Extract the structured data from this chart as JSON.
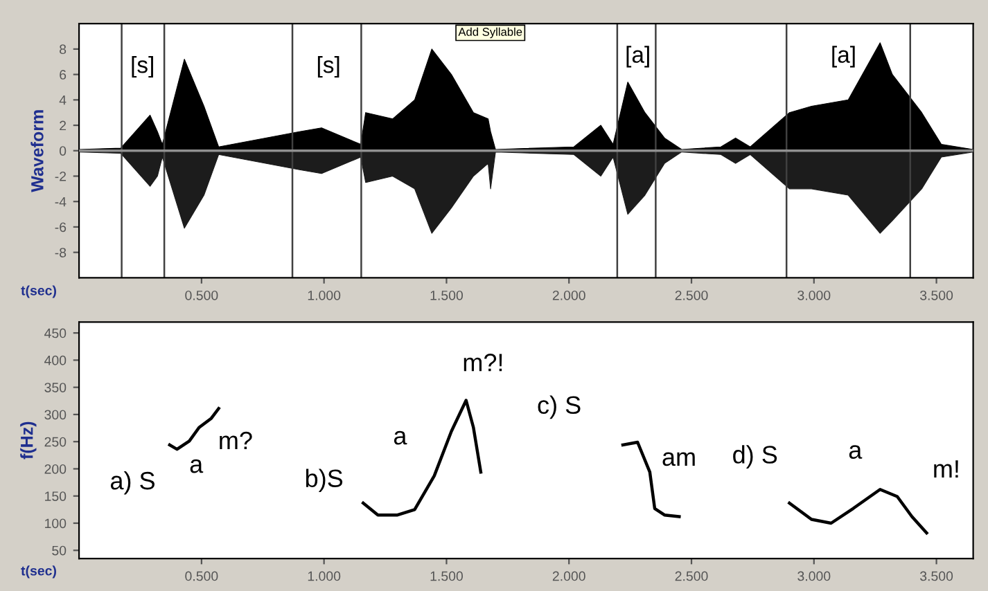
{
  "chart_data": [
    {
      "type": "area",
      "ylabel": "Waveform",
      "xlabel": "t(sec)",
      "xlim": [
        0,
        3.65
      ],
      "ylim": [
        -10,
        10
      ],
      "xticks": [
        {
          "value": 0.5,
          "label": "0.500"
        },
        {
          "value": 1.0,
          "label": "1.000"
        },
        {
          "value": 1.5,
          "label": "1.500"
        },
        {
          "value": 2.0,
          "label": "2.000"
        },
        {
          "value": 2.5,
          "label": "2.500"
        },
        {
          "value": 3.0,
          "label": "3.000"
        },
        {
          "value": 3.5,
          "label": "3.500"
        }
      ],
      "yticks": [
        -8,
        -6,
        -4,
        -2,
        0,
        2,
        4,
        6,
        8
      ],
      "series": [
        {
          "color": "#000000",
          "x": [
            0,
            0.17,
            0.29,
            0.32,
            0.34,
            0.43,
            0.51,
            0.57,
            0.9,
            0.99,
            1.15,
            1.17,
            1.28,
            1.37,
            1.44,
            1.52,
            1.61,
            1.67,
            1.68,
            1.7,
            2.02,
            2.13,
            2.18,
            2.24,
            2.31,
            2.39,
            2.46,
            2.62,
            2.68,
            2.74,
            2.9,
            2.99,
            3.14,
            3.27,
            3.32,
            3.44,
            3.52,
            3.65
          ],
          "values": [
            0.1,
            0.2,
            2.8,
            1.5,
            0.5,
            7.2,
            3.5,
            0.3,
            1.5,
            1.8,
            0.5,
            3,
            2.5,
            4,
            8,
            6,
            3,
            2.5,
            1.5,
            0.1,
            0.3,
            2,
            0.5,
            5.4,
            3,
            1,
            0.1,
            0.3,
            1,
            0.3,
            3,
            3.5,
            4,
            8.5,
            6,
            3,
            0.5,
            0.1
          ]
        },
        {
          "color": "#1c1c1c",
          "x": [
            0,
            0.17,
            0.29,
            0.32,
            0.34,
            0.43,
            0.51,
            0.57,
            0.9,
            0.99,
            1.15,
            1.17,
            1.28,
            1.37,
            1.44,
            1.52,
            1.61,
            1.67,
            1.68,
            1.7,
            2.02,
            2.13,
            2.18,
            2.24,
            2.31,
            2.39,
            2.46,
            2.62,
            2.68,
            2.74,
            2.9,
            2.99,
            3.14,
            3.27,
            3.32,
            3.44,
            3.52,
            3.65
          ],
          "values": [
            -0.1,
            -0.2,
            -2.8,
            -2,
            -0.5,
            -6.1,
            -3.5,
            -0.3,
            -1.5,
            -1.8,
            -0.5,
            -2.5,
            -2,
            -3,
            -6.5,
            -4.5,
            -2,
            -1,
            -3,
            -0.1,
            -0.3,
            -2,
            -0.5,
            -5,
            -3.5,
            -1,
            -0.1,
            -0.3,
            -1,
            -0.3,
            -3,
            -3,
            -3.5,
            -6.5,
            -5.5,
            -3,
            -0.5,
            -0.1
          ]
        }
      ],
      "ref_lines": [
        {
          "axis": "x",
          "value": 0.174,
          "color": "#404040"
        },
        {
          "axis": "x",
          "value": 0.348,
          "color": "#404040"
        },
        {
          "axis": "x",
          "value": 0.871,
          "color": "#404040"
        },
        {
          "axis": "x",
          "value": 1.152,
          "color": "#404040"
        },
        {
          "axis": "x",
          "value": 2.197,
          "color": "#404040"
        },
        {
          "axis": "x",
          "value": 2.354,
          "color": "#404040"
        },
        {
          "axis": "x",
          "value": 2.888,
          "color": "#404040"
        },
        {
          "axis": "x",
          "value": 3.393,
          "color": "#404040"
        },
        {
          "axis": "y",
          "value": 0,
          "color": "#909090"
        }
      ],
      "annotations": [
        "[s]",
        "[s]",
        "[a]",
        "[a]",
        "Add Syllable"
      ]
    },
    {
      "type": "line",
      "ylabel": "f(Hz)",
      "xlabel": "t(sec)",
      "xlim": [
        0,
        3.65
      ],
      "ylim": [
        35,
        470
      ],
      "xticks": [
        {
          "value": 0.5,
          "label": "0.500"
        },
        {
          "value": 1.0,
          "label": "1.000"
        },
        {
          "value": 1.5,
          "label": "1.500"
        },
        {
          "value": 2.0,
          "label": "2.000"
        },
        {
          "value": 2.5,
          "label": "2.500"
        },
        {
          "value": 3.0,
          "label": "3.000"
        },
        {
          "value": 3.5,
          "label": "3.500"
        }
      ],
      "yticks": [
        50,
        100,
        150,
        200,
        250,
        300,
        350,
        400,
        450
      ],
      "marker": "none",
      "line_style": "solid",
      "series": [
        {
          "color": "#000000",
          "x": [
            0.37,
            0.4,
            0.45,
            0.49,
            0.54,
            0.57
          ],
          "values": [
            244,
            236,
            251,
            276,
            293,
            311
          ]
        },
        {
          "color": "#000000",
          "x": [
            1.16,
            1.22,
            1.3,
            1.37,
            1.45,
            1.52,
            1.58,
            1.61,
            1.64
          ],
          "values": [
            137,
            115,
            115,
            125,
            187,
            269,
            326,
            276,
            194
          ]
        },
        {
          "color": "#000000",
          "x": [
            2.22,
            2.28,
            2.33,
            2.35,
            2.39,
            2.45
          ],
          "values": [
            244,
            249,
            194,
            127,
            115,
            112
          ]
        },
        {
          "color": "#000000",
          "x": [
            2.9,
            2.99,
            3.07,
            3.16,
            3.27,
            3.34,
            3.4,
            3.46
          ],
          "values": [
            137,
            107,
            100,
            127,
            162,
            149,
            112,
            82
          ]
        }
      ],
      "annotations": [
        "a) S",
        "a",
        "m?",
        "b)S",
        "a",
        "m?!",
        "c) S",
        "am",
        "d) S",
        "a",
        "m!"
      ]
    }
  ]
}
